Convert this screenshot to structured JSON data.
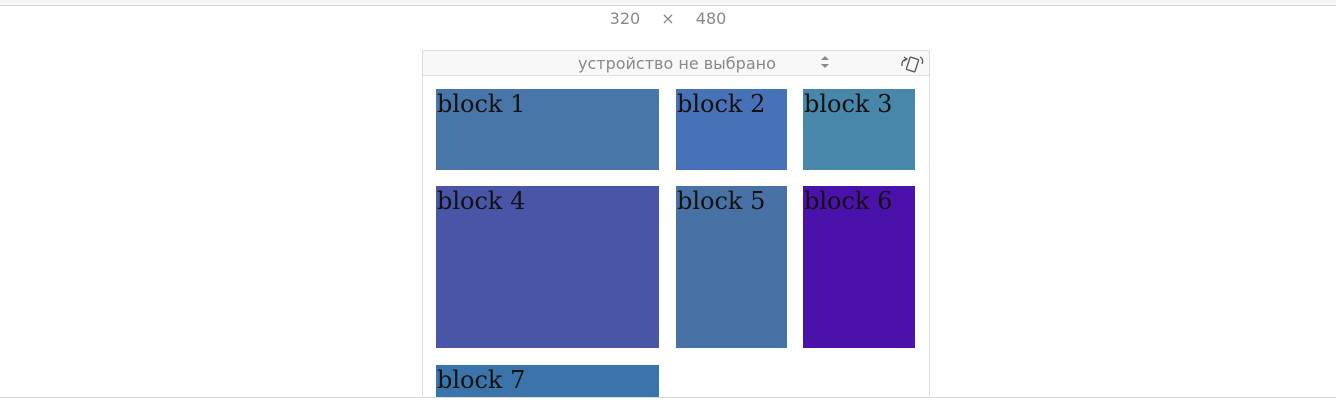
{
  "dimensions": {
    "width": "320",
    "separator": "×",
    "height": "480"
  },
  "toolbar": {
    "device_select_value": "устройство не выбрано",
    "rotate_icon": "rotate-device-icon"
  },
  "blocks": [
    {
      "label": "block 1",
      "color": "#4876a8"
    },
    {
      "label": "block 2",
      "color": "#4872b8"
    },
    {
      "label": "block 3",
      "color": "#4887aa"
    },
    {
      "label": "block 4",
      "color": "#4956a7"
    },
    {
      "label": "block 5",
      "color": "#4872a6"
    },
    {
      "label": "block 6",
      "color": "#4a12aa"
    },
    {
      "label": "block 7",
      "color": "#3a74aa"
    }
  ]
}
